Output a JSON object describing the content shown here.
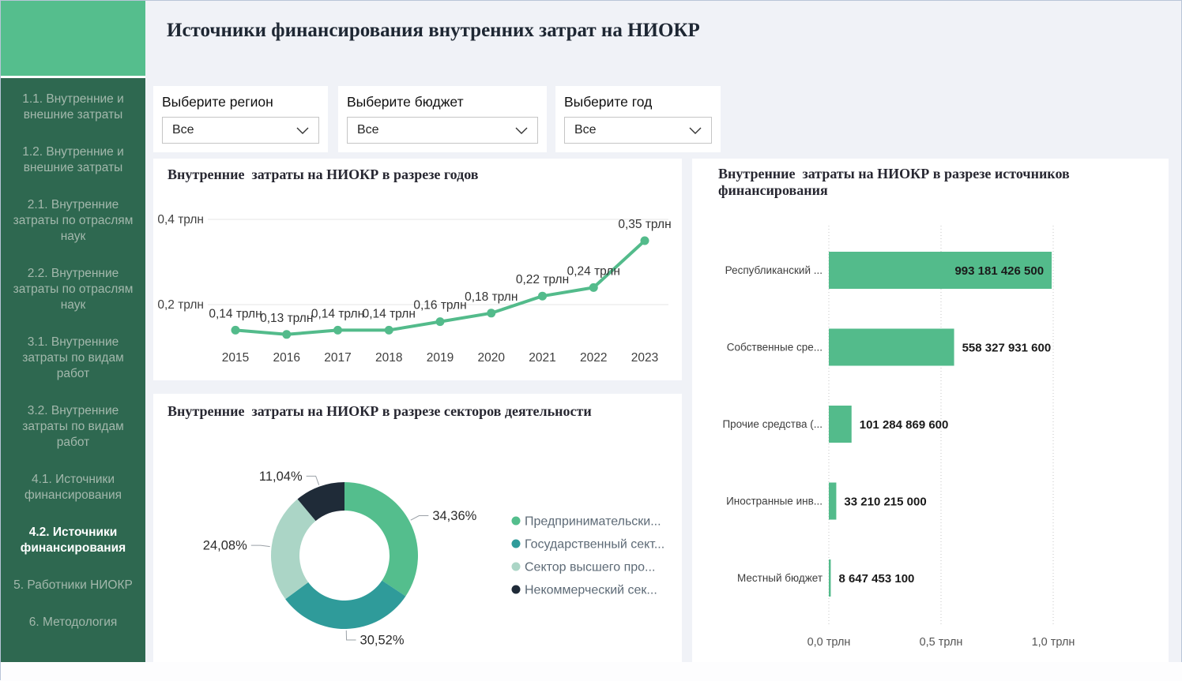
{
  "header": {
    "title": "Источники финансирования внутренних затрат на НИОКР"
  },
  "sidebar": {
    "items": [
      {
        "label": "1.1. Внутренние и внешние затраты",
        "active": false
      },
      {
        "label": "1.2. Внутренние и внешние затраты",
        "active": false
      },
      {
        "label": "2.1. Внутренние затраты по отраслям наук",
        "active": false
      },
      {
        "label": "2.2. Внутренние затраты по отраслям наук",
        "active": false
      },
      {
        "label": "3.1. Внутренние затраты по видам работ",
        "active": false
      },
      {
        "label": "3.2. Внутренние затраты по видам работ",
        "active": false
      },
      {
        "label": "4.1. Источники финансирования",
        "active": false
      },
      {
        "label": "4.2. Источники финансирования",
        "active": true
      },
      {
        "label": "5. Работники НИОКР",
        "active": false
      },
      {
        "label": "6. Методология",
        "active": false
      }
    ]
  },
  "filters": [
    {
      "label": "Выберите регион",
      "value": "Все"
    },
    {
      "label": "Выберите бюджет",
      "value": "Все"
    },
    {
      "label": "Выберите год",
      "value": "Все"
    }
  ],
  "colors": {
    "accent_green": "#55be8d",
    "chart_green": "#53bb8b",
    "teal": "#2f9b9a",
    "mint": "#abd5c6",
    "navy": "#1f2b38",
    "sidebar_bg": "#2e6850",
    "page_bg": "#f0f2f7"
  },
  "chart_data": [
    {
      "id": "years-line",
      "type": "line",
      "title": "Внутренние  затраты на НИОКР в разрезе годов",
      "x": [
        "2015",
        "2016",
        "2017",
        "2018",
        "2019",
        "2020",
        "2021",
        "2022",
        "2023"
      ],
      "values": [
        0.14,
        0.13,
        0.14,
        0.14,
        0.16,
        0.18,
        0.22,
        0.24,
        0.35
      ],
      "point_labels": [
        "0,14 трлн",
        "0,13 трлн",
        "0,14 трлн",
        "0,14 трлн",
        "0,16 трлн",
        "0,18 трлн",
        "0,22 трлн",
        "0,24 трлн",
        "0,35 трлн"
      ],
      "unit": "трлн",
      "color": "#53bb8b",
      "grid": "horizontal",
      "ylim": [
        0.1,
        0.45
      ],
      "yticks": [
        {
          "v": 0.4,
          "label": "0,4 трлн"
        },
        {
          "v": 0.2,
          "label": "0,2 трлн"
        }
      ]
    },
    {
      "id": "sectors-donut",
      "type": "pie",
      "donut": true,
      "title": "Внутренние  затраты на НИОКР в разрезе секторов деятельности",
      "legend_position": "right",
      "slices": [
        {
          "label": "Предпринимательски...",
          "value": 34.36,
          "display": "34,36%",
          "color": "#54be8d"
        },
        {
          "label": "Государственный сект...",
          "value": 30.52,
          "display": "30,52%",
          "color": "#2f9b9a"
        },
        {
          "label": "Сектор высшего про...",
          "value": 24.08,
          "display": "24,08%",
          "color": "#abd5c6"
        },
        {
          "label": "Некоммерческий сек...",
          "value": 11.04,
          "display": "11,04%",
          "color": "#1f2b38"
        }
      ]
    },
    {
      "id": "sources-bar",
      "type": "bar",
      "orientation": "horizontal",
      "title": "Внутренние  затраты на НИОКР в разрезе источников финансирования",
      "color": "#53bb8b",
      "grid": "vertical-dotted",
      "categories": [
        "Республиканский ...",
        "Собственные сре...",
        "Прочие средства (...",
        "Иностранные инв...",
        "Местный бюджет"
      ],
      "values": [
        993181426500,
        558327931600,
        101284869600,
        33210215000,
        8647453100
      ],
      "value_labels": [
        "993 181 426 500",
        "558 327 931 600",
        "101 284 869 600",
        "33 210 215 000",
        "8 647 453 100"
      ],
      "xlim": [
        0,
        1100000000000
      ],
      "xticks": [
        {
          "v": 0,
          "label": "0,0 трлн"
        },
        {
          "v": 500000000000,
          "label": "0,5 трлн"
        },
        {
          "v": 1000000000000,
          "label": "1,0 трлн"
        }
      ]
    }
  ]
}
